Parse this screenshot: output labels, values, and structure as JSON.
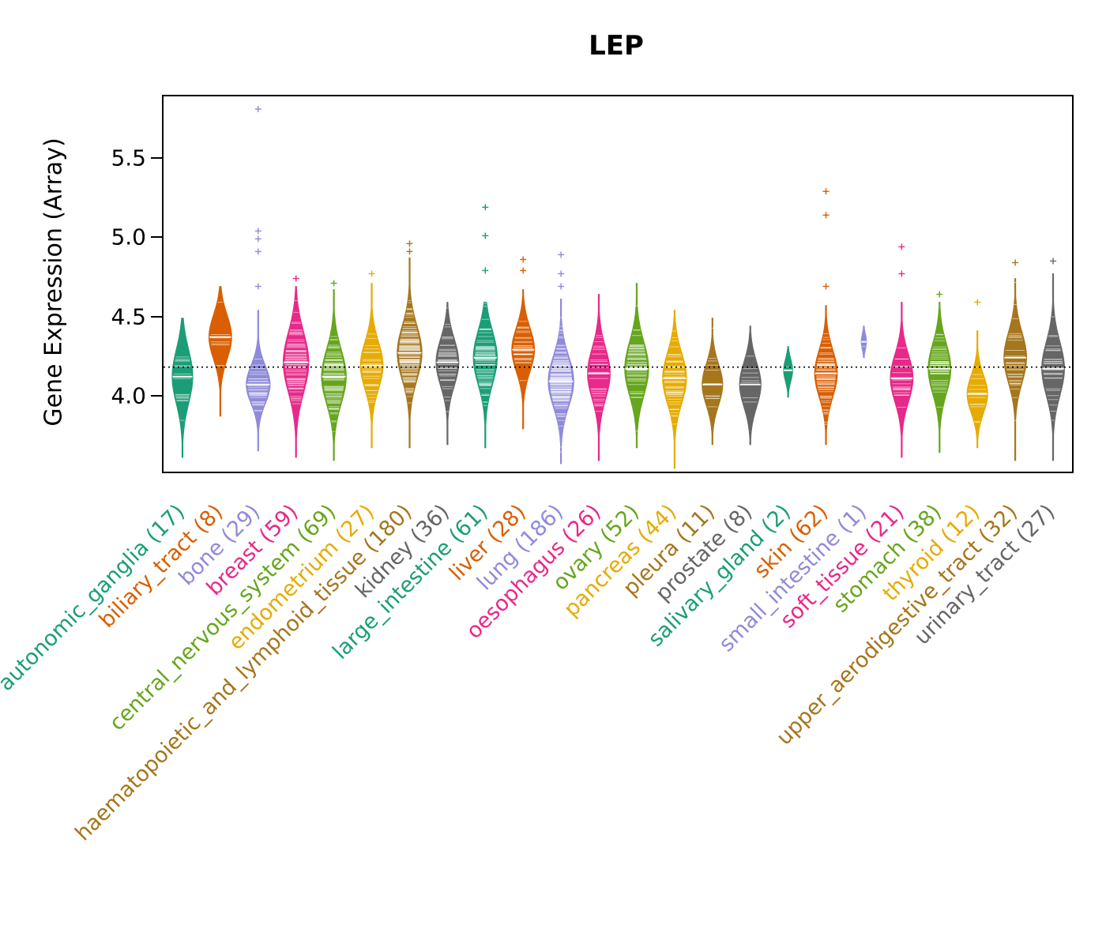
{
  "chart_data": {
    "type": "violin",
    "title": "LEP",
    "ylabel": "Gene Expression (Array)",
    "xlabel": "",
    "ylim": [
      3.53,
      5.9
    ],
    "yticks": [
      "4.0",
      "4.5",
      "5.0",
      "5.5"
    ],
    "ytick_values": [
      4.0,
      4.5,
      5.0,
      5.5
    ],
    "threshold": 4.19,
    "grid": false,
    "legend": "none",
    "axis_color": "#000000",
    "categories": [
      {
        "label": "autonomic_ganglia",
        "count": 17,
        "color": "#1B9E77",
        "center": 4.13,
        "sigma": 0.17,
        "lo": 3.62,
        "hi": 4.5,
        "maxw": 0.5,
        "outliers": []
      },
      {
        "label": "biliary_tract",
        "count": 8,
        "color": "#D95F02",
        "center": 4.38,
        "sigma": 0.14,
        "lo": 3.88,
        "hi": 4.7,
        "maxw": 0.55,
        "outliers": []
      },
      {
        "label": "bone",
        "count": 29,
        "color": "#8F8BDA",
        "center": 4.08,
        "sigma": 0.12,
        "lo": 3.66,
        "hi": 4.55,
        "maxw": 0.58,
        "outliers": [
          4.7,
          4.92,
          5.0,
          5.05,
          5.82
        ]
      },
      {
        "label": "breast",
        "count": 59,
        "color": "#E7298A",
        "center": 4.22,
        "sigma": 0.19,
        "lo": 3.62,
        "hi": 4.7,
        "maxw": 0.62,
        "outliers": [
          4.75
        ]
      },
      {
        "label": "central_nervous_system",
        "count": 69,
        "color": "#66A61E",
        "center": 4.13,
        "sigma": 0.17,
        "lo": 3.6,
        "hi": 4.68,
        "maxw": 0.6,
        "outliers": [
          4.72
        ]
      },
      {
        "label": "endometrium",
        "count": 27,
        "color": "#E6AB02",
        "center": 4.2,
        "sigma": 0.15,
        "lo": 3.68,
        "hi": 4.72,
        "maxw": 0.55,
        "outliers": [
          4.78
        ]
      },
      {
        "label": "haematopoietic_and_lymphoid_tissue",
        "count": 180,
        "color": "#A6761D",
        "center": 4.28,
        "sigma": 0.17,
        "lo": 3.68,
        "hi": 4.88,
        "maxw": 0.6,
        "outliers": [
          4.92,
          4.97
        ]
      },
      {
        "label": "kidney",
        "count": 36,
        "color": "#666666",
        "center": 4.22,
        "sigma": 0.15,
        "lo": 3.7,
        "hi": 4.6,
        "maxw": 0.55,
        "outliers": []
      },
      {
        "label": "large_intestine",
        "count": 61,
        "color": "#1B9E77",
        "center": 4.25,
        "sigma": 0.17,
        "lo": 3.68,
        "hi": 4.6,
        "maxw": 0.58,
        "outliers": [
          4.8,
          5.02,
          5.2
        ]
      },
      {
        "label": "liver",
        "count": 28,
        "color": "#D95F02",
        "center": 4.3,
        "sigma": 0.14,
        "lo": 3.8,
        "hi": 4.68,
        "maxw": 0.55,
        "outliers": [
          4.8,
          4.87
        ]
      },
      {
        "label": "lung",
        "count": 186,
        "color": "#8F8BDA",
        "center": 4.1,
        "sigma": 0.16,
        "lo": 3.58,
        "hi": 4.62,
        "maxw": 0.62,
        "outliers": [
          4.7,
          4.78,
          4.9
        ]
      },
      {
        "label": "oesophagus",
        "count": 26,
        "color": "#E7298A",
        "center": 4.15,
        "sigma": 0.16,
        "lo": 3.6,
        "hi": 4.65,
        "maxw": 0.55,
        "outliers": []
      },
      {
        "label": "ovary",
        "count": 52,
        "color": "#66A61E",
        "center": 4.18,
        "sigma": 0.17,
        "lo": 3.68,
        "hi": 4.72,
        "maxw": 0.58,
        "outliers": []
      },
      {
        "label": "pancreas",
        "count": 44,
        "color": "#E6AB02",
        "center": 4.12,
        "sigma": 0.16,
        "lo": 3.55,
        "hi": 4.55,
        "maxw": 0.58,
        "outliers": []
      },
      {
        "label": "pleura",
        "count": 11,
        "color": "#A6761D",
        "center": 4.08,
        "sigma": 0.13,
        "lo": 3.7,
        "hi": 4.5,
        "maxw": 0.5,
        "outliers": []
      },
      {
        "label": "prostate",
        "count": 8,
        "color": "#666666",
        "center": 4.08,
        "sigma": 0.14,
        "lo": 3.7,
        "hi": 4.45,
        "maxw": 0.52,
        "outliers": []
      },
      {
        "label": "salivary_gland",
        "count": 2,
        "color": "#1B9E77",
        "center": 4.17,
        "sigma": 0.07,
        "lo": 4.0,
        "hi": 4.32,
        "maxw": 0.22,
        "outliers": []
      },
      {
        "label": "skin",
        "count": 62,
        "color": "#D95F02",
        "center": 4.15,
        "sigma": 0.15,
        "lo": 3.7,
        "hi": 4.58,
        "maxw": 0.55,
        "outliers": [
          4.7,
          5.15,
          5.3
        ]
      },
      {
        "label": "small_intestine",
        "count": 1,
        "color": "#8F8BDA",
        "center": 4.35,
        "sigma": 0.05,
        "lo": 4.25,
        "hi": 4.45,
        "maxw": 0.13,
        "outliers": []
      },
      {
        "label": "soft_tissue",
        "count": 21,
        "color": "#E7298A",
        "center": 4.12,
        "sigma": 0.15,
        "lo": 3.62,
        "hi": 4.6,
        "maxw": 0.55,
        "outliers": [
          4.78,
          4.95
        ]
      },
      {
        "label": "stomach",
        "count": 38,
        "color": "#66A61E",
        "center": 4.18,
        "sigma": 0.16,
        "lo": 3.65,
        "hi": 4.6,
        "maxw": 0.55,
        "outliers": [
          4.65
        ]
      },
      {
        "label": "thyroid",
        "count": 12,
        "color": "#E6AB02",
        "center": 4.02,
        "sigma": 0.12,
        "lo": 3.68,
        "hi": 4.42,
        "maxw": 0.5,
        "outliers": [
          4.6
        ]
      },
      {
        "label": "upper_aerodigestive_tract",
        "count": 32,
        "color": "#A6761D",
        "center": 4.25,
        "sigma": 0.16,
        "lo": 3.6,
        "hi": 4.75,
        "maxw": 0.55,
        "outliers": [
          4.85
        ]
      },
      {
        "label": "urinary_tract",
        "count": 27,
        "color": "#666666",
        "center": 4.18,
        "sigma": 0.17,
        "lo": 3.6,
        "hi": 4.78,
        "maxw": 0.55,
        "outliers": [
          4.86
        ]
      }
    ]
  }
}
